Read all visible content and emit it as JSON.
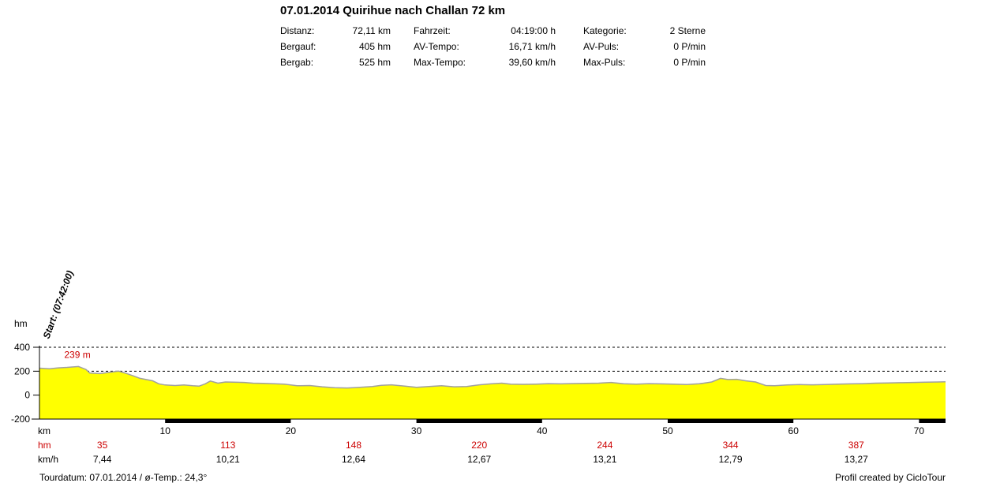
{
  "header": {
    "title": "07.01.2014 Quirihue nach Challan 72 km",
    "stats": [
      {
        "label": "Distanz:",
        "value": "72,11 km"
      },
      {
        "label": "Bergauf:",
        "value": "405 hm"
      },
      {
        "label": "Bergab:",
        "value": "525 hm"
      },
      {
        "label": "Fahrzeit:",
        "value": "04:19:00 h"
      },
      {
        "label": "AV-Tempo:",
        "value": "16,71 km/h"
      },
      {
        "label": "Max-Tempo:",
        "value": "39,60 km/h"
      },
      {
        "label": "Kategorie:",
        "value": "2 Sterne"
      },
      {
        "label": "AV-Puls:",
        "value": "0 P/min"
      },
      {
        "label": "Max-Puls:",
        "value": "0 P/min"
      }
    ]
  },
  "chart_data": {
    "type": "area",
    "ylabel": "hm",
    "xlabel": "km",
    "xlim": [
      0,
      72.11
    ],
    "ylim": [
      -200,
      400
    ],
    "yticks": [
      400,
      200,
      0,
      -200
    ],
    "xticks": [
      10,
      20,
      30,
      40,
      50,
      60,
      70
    ],
    "grid": "dashed-horizontal",
    "colors": {
      "fill": "#ffff00",
      "line": "#a0a0a0",
      "axis": "#000000",
      "red": "#cc0000"
    },
    "start_label": "Start: (07:42:00)",
    "max_label": "239 m",
    "max_point": {
      "x": 3.1,
      "y": 239
    },
    "x": [
      0,
      0.8,
      1.5,
      2.2,
      3.1,
      3.7,
      4.0,
      4.8,
      5.5,
      6.3,
      6.8,
      7.5,
      8.0,
      8.5,
      9.0,
      9.5,
      10.0,
      10.8,
      11.5,
      12.2,
      12.7,
      13.2,
      13.6,
      14.2,
      14.8,
      15.5,
      16.3,
      17.0,
      17.8,
      18.5,
      19.5,
      20.5,
      21.5,
      22.5,
      23.5,
      24.5,
      25.5,
      26.5,
      27.2,
      28.0,
      29.0,
      30.0,
      31.0,
      32.0,
      33.0,
      34.0,
      35.0,
      36.0,
      36.8,
      37.5,
      38.5,
      39.5,
      40.5,
      41.5,
      42.5,
      43.5,
      44.5,
      45.5,
      46.5,
      47.5,
      48.5,
      49.5,
      50.5,
      51.5,
      52.5,
      53.5,
      54.2,
      54.8,
      55.5,
      56.2,
      57.0,
      57.8,
      58.5,
      59.5,
      60.5,
      61.5,
      62.5,
      63.5,
      64.5,
      65.5,
      66.5,
      67.5,
      68.5,
      69.5,
      70.5,
      71.5,
      72.11
    ],
    "y": [
      225,
      220,
      228,
      232,
      239,
      215,
      185,
      180,
      190,
      200,
      185,
      160,
      140,
      130,
      120,
      95,
      85,
      80,
      85,
      78,
      75,
      95,
      118,
      100,
      110,
      108,
      106,
      100,
      98,
      96,
      92,
      78,
      80,
      70,
      62,
      60,
      66,
      72,
      82,
      86,
      76,
      66,
      72,
      78,
      70,
      72,
      86,
      95,
      100,
      92,
      90,
      92,
      96,
      94,
      97,
      99,
      100,
      106,
      95,
      92,
      96,
      94,
      92,
      88,
      95,
      110,
      140,
      130,
      132,
      120,
      110,
      80,
      78,
      85,
      88,
      86,
      88,
      92,
      94,
      96,
      100,
      102,
      104,
      106,
      108,
      110,
      112
    ],
    "km_row_label": "km",
    "hm_row_label": "hm",
    "kmh_row_label": "km/h",
    "segments": [
      {
        "x": 5,
        "hm": "35",
        "kmh": "7,44"
      },
      {
        "x": 15,
        "hm": "113",
        "kmh": "10,21"
      },
      {
        "x": 25,
        "hm": "148",
        "kmh": "12,64"
      },
      {
        "x": 35,
        "hm": "220",
        "kmh": "12,67"
      },
      {
        "x": 45,
        "hm": "244",
        "kmh": "13,21"
      },
      {
        "x": 55,
        "hm": "344",
        "kmh": "12,79"
      },
      {
        "x": 65,
        "hm": "387",
        "kmh": "13,27"
      }
    ]
  },
  "footer": {
    "left": "Tourdatum: 07.01.2014  /  ø-Temp.: 24,3°",
    "right": "Profil created by CicloTour"
  }
}
